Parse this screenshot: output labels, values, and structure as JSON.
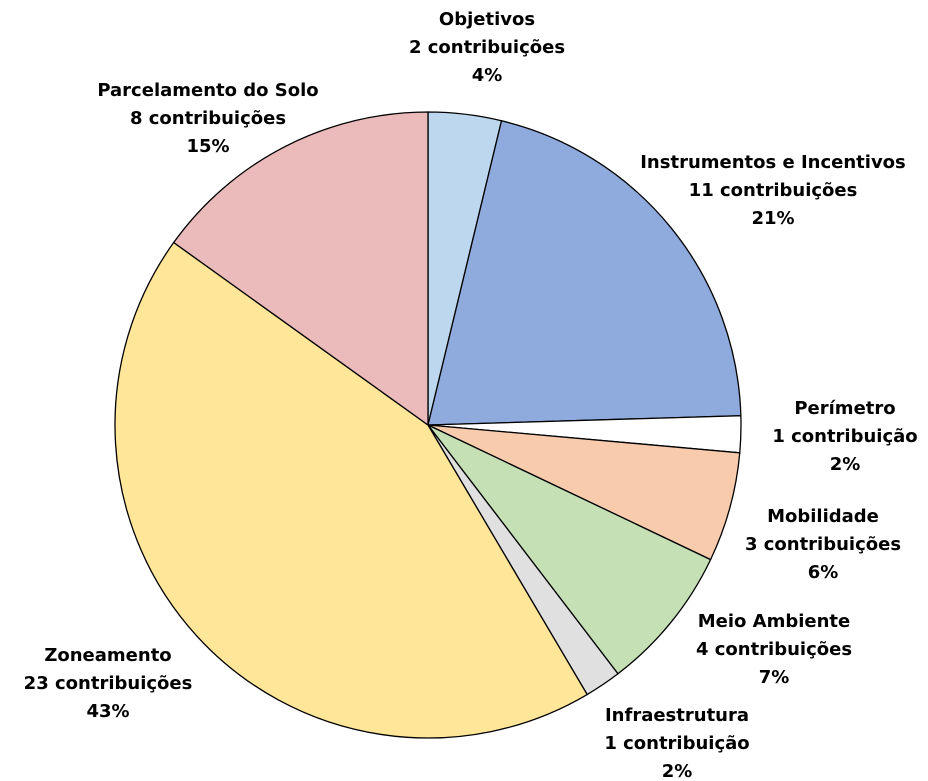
{
  "chart_data": {
    "type": "pie",
    "categories": [
      "Objetivos",
      "Instrumentos e Incentivos",
      "Perímetro",
      "Mobilidade",
      "Meio Ambiente",
      "Infraestrutura",
      "Zoneamento",
      "Parcelamento do Solo"
    ],
    "values": [
      2,
      11,
      1,
      3,
      4,
      1,
      23,
      8
    ],
    "value_labels": [
      "2 contribuições",
      "11 contribuições",
      "1 contribuição",
      "3 contribuições",
      "4 contribuições",
      "1 contribuição",
      "23 contribuições",
      "8 contribuições"
    ],
    "percent_labels": [
      "4%",
      "21%",
      "2%",
      "6%",
      "7%",
      "2%",
      "43%",
      "15%"
    ],
    "colors": [
      "#bdd7ee",
      "#8faadc",
      "#ffffff",
      "#f8cbad",
      "#c5e0b4",
      "#e0e0e0",
      "#ffe699",
      "#ebbbbb"
    ]
  }
}
